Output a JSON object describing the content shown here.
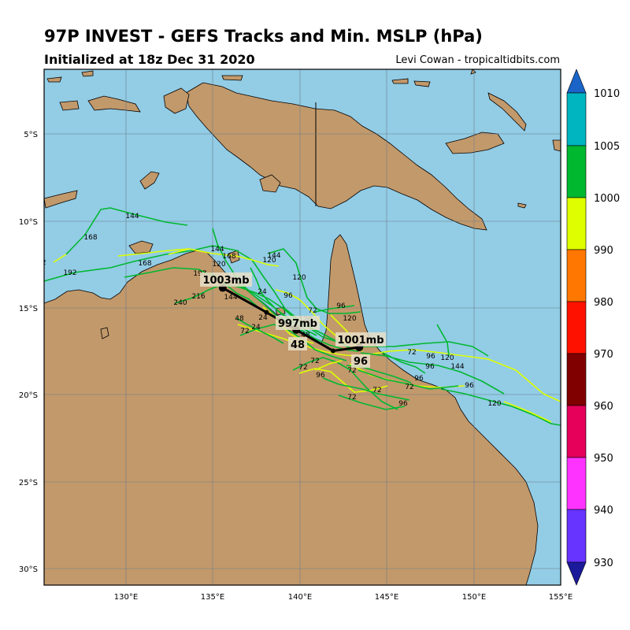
{
  "title": "97P INVEST - GEFS Tracks and Min. MSLP (hPa)",
  "subtitle": "Initialized at 18z Dec 31 2020",
  "credit": "Levi Cowan - tropicaltidbits.com",
  "map": {
    "lon_range": [
      125.5,
      155
    ],
    "lat_range": [
      -31,
      -1.5
    ],
    "lat_ticks": [
      "5°S",
      "10°S",
      "15°S",
      "20°S",
      "25°S",
      "30°S"
    ],
    "lon_ticks": [
      "130°E",
      "135°E",
      "140°E",
      "145°E",
      "150°E",
      "155°E"
    ],
    "ocean_color": "#93cce5",
    "land_color": "#c2996b",
    "gridlines": true
  },
  "colorbar": {
    "labels": [
      "1010",
      "1005",
      "1000",
      "990",
      "980",
      "970",
      "960",
      "950",
      "940",
      "930"
    ],
    "colors": [
      "#1a64c8",
      "#00b4c0",
      "#00b830",
      "#ddff00",
      "#ff7700",
      "#ff1100",
      "#800000",
      "#e6005a",
      "#ff33ff",
      "#6633ff",
      "#1a1a9a"
    ]
  },
  "ensemble_mean": {
    "points": [
      {
        "lon": 143.5,
        "lat": -17.4
      },
      {
        "lon": 142.0,
        "lat": -17.6
      },
      {
        "lon": 139.9,
        "lat": -16.4
      },
      {
        "lon": 138.2,
        "lat": -15.4
      },
      {
        "lon": 135.7,
        "lat": -14.0
      }
    ]
  },
  "labels": {
    "mslp": [
      "1001mb",
      "997mb",
      "1003mb"
    ],
    "hours": [
      "96",
      "48"
    ]
  },
  "track_hour_labels": [
    "144",
    "168",
    "192",
    "192",
    "168",
    "144",
    "168",
    "120",
    "144",
    "120",
    "197",
    "120",
    "216",
    "240",
    "144",
    "24",
    "24",
    "48",
    "72",
    "96",
    "120",
    "72",
    "96",
    "120",
    "72",
    "72",
    "72",
    "96",
    "120",
    "144",
    "96",
    "96",
    "72",
    "72",
    "72",
    "96",
    "96",
    "120",
    "24",
    "48",
    "72",
    "96"
  ]
}
